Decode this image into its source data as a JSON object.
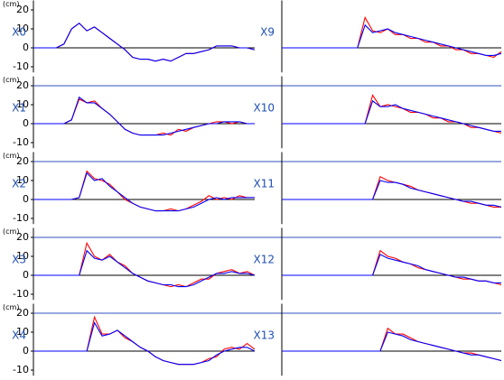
{
  "chart_data": [
    {
      "type": "line",
      "label": "X0",
      "y_unit": "(cm)",
      "x": [
        0,
        1,
        2,
        3,
        4,
        5,
        6,
        7,
        8,
        9,
        10,
        11,
        12,
        13,
        14,
        15,
        16,
        17,
        18,
        19,
        20,
        21,
        22,
        23,
        24,
        25,
        26,
        27,
        28,
        29
      ],
      "xlim": [
        0,
        29
      ],
      "ylim": [
        -13,
        25
      ],
      "yticks": [
        -10,
        0,
        10,
        20
      ],
      "series": [
        {
          "color": "#ff0000",
          "values": [
            0,
            0,
            0,
            0,
            2,
            10,
            13,
            9,
            11,
            8,
            5,
            2,
            -1,
            -5,
            -6,
            -6,
            -7,
            -6,
            -7,
            -5,
            -3,
            -3,
            -2,
            -1,
            1,
            1,
            1,
            0,
            0,
            -1
          ]
        },
        {
          "color": "#0000ff",
          "values": [
            0,
            0,
            0,
            0,
            2,
            10,
            13,
            9,
            11,
            8,
            5,
            2,
            -1,
            -5,
            -6,
            -6,
            -7,
            -6,
            -7,
            -5,
            -3,
            -3,
            -2,
            -1,
            1,
            1,
            1,
            0,
            0,
            -1
          ]
        }
      ]
    },
    {
      "type": "line",
      "label": "X1",
      "y_unit": "(cm)",
      "x": [
        0,
        1,
        2,
        3,
        4,
        5,
        6,
        7,
        8,
        9,
        10,
        11,
        12,
        13,
        14,
        15,
        16,
        17,
        18,
        19,
        20,
        21,
        22,
        23,
        24,
        25,
        26,
        27,
        28,
        29
      ],
      "xlim": [
        0,
        29
      ],
      "ylim": [
        -13,
        25
      ],
      "yticks": [
        -10,
        0,
        10,
        20
      ],
      "series": [
        {
          "color": "#ff0000",
          "values": [
            0,
            0,
            0,
            0,
            0,
            2,
            13,
            11,
            12,
            8,
            5,
            1,
            -3,
            -5,
            -6,
            -6,
            -6,
            -5,
            -6,
            -3,
            -4,
            -2,
            -1,
            0,
            1,
            1,
            0,
            1,
            0,
            0
          ]
        },
        {
          "color": "#0000ff",
          "values": [
            0,
            0,
            0,
            0,
            0,
            2,
            14,
            11,
            11,
            8,
            5,
            1,
            -3,
            -5,
            -6,
            -6,
            -6,
            -6,
            -5,
            -4,
            -3,
            -2,
            -1,
            0,
            0,
            1,
            1,
            1,
            0,
            0
          ]
        }
      ]
    },
    {
      "type": "line",
      "label": "X2",
      "y_unit": "(cm)",
      "x": [
        0,
        1,
        2,
        3,
        4,
        5,
        6,
        7,
        8,
        9,
        10,
        11,
        12,
        13,
        14,
        15,
        16,
        17,
        18,
        19,
        20,
        21,
        22,
        23,
        24,
        25,
        26,
        27,
        28,
        29
      ],
      "xlim": [
        0,
        29
      ],
      "ylim": [
        -13,
        25
      ],
      "yticks": [
        -10,
        0,
        10,
        20
      ],
      "series": [
        {
          "color": "#ff0000",
          "values": [
            0,
            0,
            0,
            0,
            0,
            0,
            1,
            15,
            11,
            10,
            8,
            4,
            0,
            -2,
            -4,
            -5,
            -6,
            -6,
            -5,
            -6,
            -5,
            -3,
            -1,
            2,
            0,
            1,
            0,
            2,
            1,
            1
          ]
        },
        {
          "color": "#0000ff",
          "values": [
            0,
            0,
            0,
            0,
            0,
            0,
            1,
            14,
            10,
            11,
            7,
            4,
            1,
            -2,
            -4,
            -5,
            -6,
            -6,
            -6,
            -6,
            -5,
            -4,
            -2,
            0,
            1,
            0,
            1,
            1,
            1,
            1
          ]
        }
      ]
    },
    {
      "type": "line",
      "label": "X3",
      "y_unit": "(cm)",
      "x": [
        0,
        1,
        2,
        3,
        4,
        5,
        6,
        7,
        8,
        9,
        10,
        11,
        12,
        13,
        14,
        15,
        16,
        17,
        18,
        19,
        20,
        21,
        22,
        23,
        24,
        25,
        26,
        27,
        28,
        29
      ],
      "xlim": [
        0,
        29
      ],
      "ylim": [
        -13,
        25
      ],
      "yticks": [
        -10,
        0,
        10,
        20
      ],
      "series": [
        {
          "color": "#ff0000",
          "values": [
            0,
            0,
            0,
            0,
            0,
            0,
            0,
            17,
            10,
            8,
            11,
            7,
            5,
            1,
            -1,
            -3,
            -4,
            -5,
            -6,
            -5,
            -6,
            -4,
            -2,
            -2,
            1,
            2,
            3,
            1,
            2,
            0
          ]
        },
        {
          "color": "#0000ff",
          "values": [
            0,
            0,
            0,
            0,
            0,
            0,
            0,
            13,
            9,
            8,
            10,
            7,
            4,
            1,
            -1,
            -3,
            -4,
            -5,
            -5,
            -6,
            -6,
            -5,
            -3,
            -1,
            1,
            1,
            2,
            1,
            1,
            0
          ]
        }
      ]
    },
    {
      "type": "line",
      "label": "X4",
      "y_unit": "(cm)",
      "x": [
        0,
        1,
        2,
        3,
        4,
        5,
        6,
        7,
        8,
        9,
        10,
        11,
        12,
        13,
        14,
        15,
        16,
        17,
        18,
        19,
        20,
        21,
        22,
        23,
        24,
        25,
        26,
        27,
        28,
        29
      ],
      "xlim": [
        0,
        29
      ],
      "ylim": [
        -13,
        25
      ],
      "yticks": [
        -10,
        0,
        10,
        20
      ],
      "series": [
        {
          "color": "#ff0000",
          "values": [
            0,
            0,
            0,
            0,
            0,
            0,
            0,
            0,
            18,
            9,
            9,
            11,
            7,
            5,
            2,
            0,
            -3,
            -5,
            -6,
            -7,
            -7,
            -7,
            -6,
            -4,
            -3,
            1,
            2,
            1,
            4,
            1
          ]
        },
        {
          "color": "#0000ff",
          "values": [
            0,
            0,
            0,
            0,
            0,
            0,
            0,
            0,
            15,
            8,
            9,
            11,
            8,
            5,
            2,
            0,
            -3,
            -5,
            -6,
            -7,
            -7,
            -7,
            -6,
            -5,
            -2,
            0,
            1,
            2,
            2,
            0
          ]
        }
      ]
    },
    {
      "type": "line",
      "label": "X9",
      "x": [
        0,
        1,
        2,
        3,
        4,
        5,
        6,
        7,
        8,
        9,
        10,
        11,
        12,
        13,
        14,
        15,
        16,
        17,
        18,
        19,
        20,
        21,
        22,
        23,
        24,
        25,
        26,
        27,
        28,
        29
      ],
      "xlim": [
        0,
        29
      ],
      "ylim": [
        -13,
        25
      ],
      "series": [
        {
          "color": "#ff0000",
          "values": [
            0,
            0,
            0,
            0,
            0,
            0,
            0,
            0,
            0,
            0,
            0,
            16,
            9,
            8,
            10,
            7,
            7,
            5,
            5,
            3,
            3,
            1,
            1,
            -1,
            -1,
            -3,
            -3,
            -4,
            -5,
            -2
          ]
        },
        {
          "color": "#0000ff",
          "values": [
            0,
            0,
            0,
            0,
            0,
            0,
            0,
            0,
            0,
            0,
            0,
            12,
            8,
            9,
            10,
            8,
            7,
            6,
            5,
            4,
            3,
            2,
            1,
            0,
            -1,
            -2,
            -3,
            -4,
            -4,
            -3
          ]
        }
      ]
    },
    {
      "type": "line",
      "label": "X10",
      "x": [
        0,
        1,
        2,
        3,
        4,
        5,
        6,
        7,
        8,
        9,
        10,
        11,
        12,
        13,
        14,
        15,
        16,
        17,
        18,
        19,
        20,
        21,
        22,
        23,
        24,
        25,
        26,
        27,
        28,
        29
      ],
      "xlim": [
        0,
        29
      ],
      "ylim": [
        -13,
        25
      ],
      "series": [
        {
          "color": "#ff0000",
          "values": [
            0,
            0,
            0,
            0,
            0,
            0,
            0,
            0,
            0,
            0,
            0,
            0,
            15,
            9,
            10,
            9,
            8,
            6,
            6,
            5,
            3,
            3,
            1,
            1,
            0,
            -2,
            -2,
            -3,
            -4,
            -5
          ]
        },
        {
          "color": "#0000ff",
          "values": [
            0,
            0,
            0,
            0,
            0,
            0,
            0,
            0,
            0,
            0,
            0,
            0,
            12,
            9,
            9,
            10,
            8,
            7,
            6,
            5,
            4,
            3,
            2,
            1,
            0,
            -1,
            -2,
            -3,
            -4,
            -4
          ]
        }
      ]
    },
    {
      "type": "line",
      "label": "X11",
      "x": [
        0,
        1,
        2,
        3,
        4,
        5,
        6,
        7,
        8,
        9,
        10,
        11,
        12,
        13,
        14,
        15,
        16,
        17,
        18,
        19,
        20,
        21,
        22,
        23,
        24,
        25,
        26,
        27,
        28,
        29
      ],
      "xlim": [
        0,
        29
      ],
      "ylim": [
        -13,
        25
      ],
      "series": [
        {
          "color": "#ff0000",
          "values": [
            0,
            0,
            0,
            0,
            0,
            0,
            0,
            0,
            0,
            0,
            0,
            0,
            0,
            12,
            10,
            9,
            8,
            7,
            5,
            4,
            3,
            2,
            1,
            0,
            -1,
            -2,
            -2,
            -3,
            -4,
            -4
          ]
        },
        {
          "color": "#0000ff",
          "values": [
            0,
            0,
            0,
            0,
            0,
            0,
            0,
            0,
            0,
            0,
            0,
            0,
            0,
            10,
            9,
            9,
            8,
            6,
            5,
            4,
            3,
            2,
            1,
            0,
            -1,
            -1,
            -2,
            -3,
            -3,
            -4
          ]
        }
      ]
    },
    {
      "type": "line",
      "label": "X12",
      "x": [
        0,
        1,
        2,
        3,
        4,
        5,
        6,
        7,
        8,
        9,
        10,
        11,
        12,
        13,
        14,
        15,
        16,
        17,
        18,
        19,
        20,
        21,
        22,
        23,
        24,
        25,
        26,
        27,
        28,
        29
      ],
      "xlim": [
        0,
        29
      ],
      "ylim": [
        -13,
        25
      ],
      "series": [
        {
          "color": "#ff0000",
          "values": [
            0,
            0,
            0,
            0,
            0,
            0,
            0,
            0,
            0,
            0,
            0,
            0,
            0,
            13,
            10,
            9,
            7,
            6,
            4,
            3,
            2,
            1,
            0,
            -1,
            -2,
            -2,
            -3,
            -3,
            -4,
            -5
          ]
        },
        {
          "color": "#0000ff",
          "values": [
            0,
            0,
            0,
            0,
            0,
            0,
            0,
            0,
            0,
            0,
            0,
            0,
            0,
            11,
            9,
            8,
            7,
            6,
            5,
            3,
            2,
            1,
            0,
            -1,
            -1,
            -2,
            -3,
            -3,
            -4,
            -4
          ]
        }
      ]
    },
    {
      "type": "line",
      "label": "X13",
      "x": [
        0,
        1,
        2,
        3,
        4,
        5,
        6,
        7,
        8,
        9,
        10,
        11,
        12,
        13,
        14,
        15,
        16,
        17,
        18,
        19,
        20,
        21,
        22,
        23,
        24,
        25,
        26,
        27,
        28,
        29
      ],
      "xlim": [
        0,
        29
      ],
      "ylim": [
        -13,
        25
      ],
      "series": [
        {
          "color": "#ff0000",
          "values": [
            0,
            0,
            0,
            0,
            0,
            0,
            0,
            0,
            0,
            0,
            0,
            0,
            0,
            0,
            12,
            9,
            9,
            7,
            5,
            4,
            3,
            2,
            1,
            0,
            -1,
            -1,
            -2,
            -3,
            -4,
            -5
          ]
        },
        {
          "color": "#0000ff",
          "values": [
            0,
            0,
            0,
            0,
            0,
            0,
            0,
            0,
            0,
            0,
            0,
            0,
            0,
            0,
            10,
            9,
            8,
            6,
            5,
            4,
            3,
            2,
            1,
            0,
            -1,
            -2,
            -2,
            -3,
            -4,
            -5
          ]
        }
      ]
    }
  ]
}
